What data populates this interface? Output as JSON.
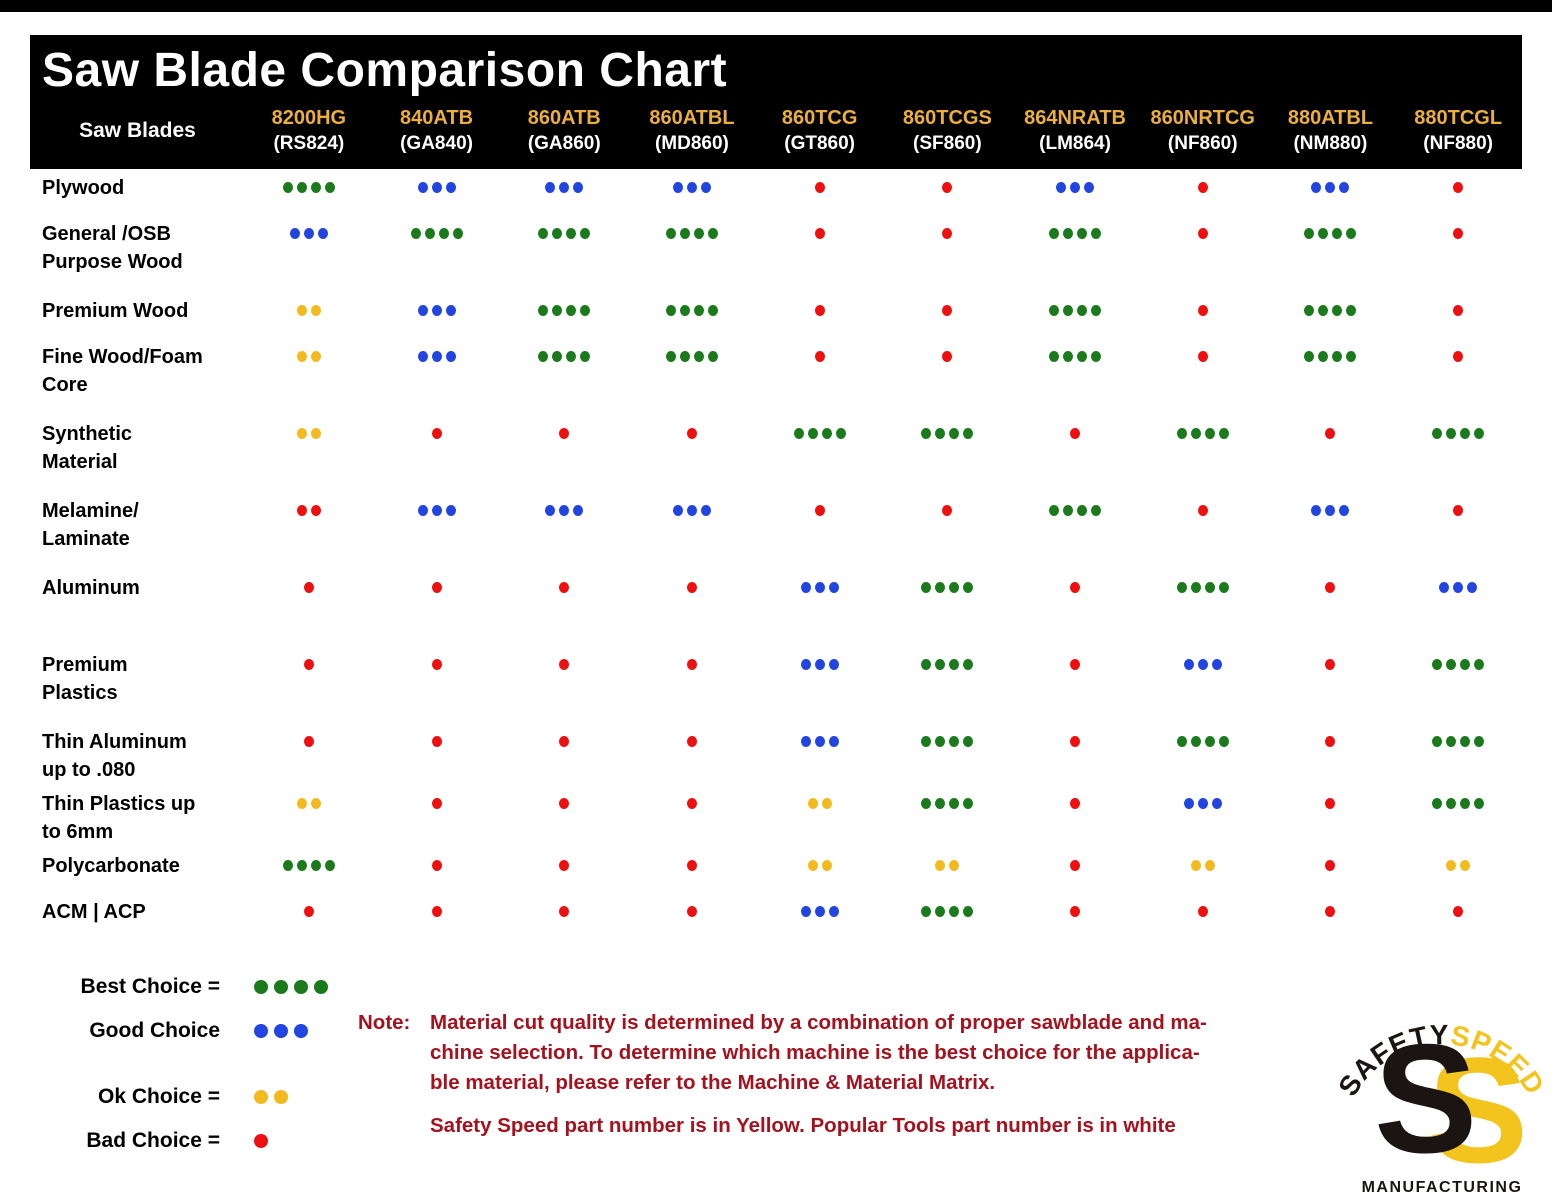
{
  "title": "Saw Blade Comparison Chart",
  "colors": {
    "header_bg": "#000000",
    "title_text": "#ffffff",
    "part_number_yellow": "#ecaf3c",
    "popular_number_white": "#ffffff",
    "best_green": "#1b7a1b",
    "good_blue": "#2244e0",
    "ok_yellow": "#f3ba20",
    "bad_red": "#ee1010",
    "note_red": "#a5121e",
    "logo_yellow": "#f2c41d",
    "logo_black": "#1a1512"
  },
  "table": {
    "corner_label": "Saw Blades",
    "columns": [
      {
        "part": "8200HG",
        "popular": "(RS824)"
      },
      {
        "part": "840ATB",
        "popular": "(GA840)"
      },
      {
        "part": "860ATB",
        "popular": "(GA860)"
      },
      {
        "part": "860ATBL",
        "popular": "(MD860)"
      },
      {
        "part": "860TCG",
        "popular": "(GT860)"
      },
      {
        "part": "860TCGS",
        "popular": "(SF860)"
      },
      {
        "part": "864NRATB",
        "popular": "(LM864)"
      },
      {
        "part": "860NRTCG",
        "popular": "(NF860)"
      },
      {
        "part": "880ATBL",
        "popular": "(NM880)"
      },
      {
        "part": "880TCGL",
        "popular": "(NF880)"
      }
    ],
    "rows": [
      {
        "label_lines": [
          "Plywood"
        ],
        "ratings": [
          "g4",
          "b3",
          "b3",
          "b3",
          "r1",
          "r1",
          "b3",
          "r1",
          "b3",
          "r1"
        ]
      },
      {
        "label_lines": [
          "General /OSB",
          "Purpose Wood"
        ],
        "ratings": [
          "b3",
          "g4",
          "g4",
          "g4",
          "r1",
          "r1",
          "g4",
          "r1",
          "g4",
          "r1"
        ]
      },
      {
        "label_lines": [
          "Premium Wood"
        ],
        "ratings": [
          "y2",
          "b3",
          "g4",
          "g4",
          "r1",
          "r1",
          "g4",
          "r1",
          "g4",
          "r1"
        ]
      },
      {
        "label_lines": [
          "Fine Wood/Foam",
          "Core"
        ],
        "ratings": [
          "y2",
          "b3",
          "g4",
          "g4",
          "r1",
          "r1",
          "g4",
          "r1",
          "g4",
          "r1"
        ]
      },
      {
        "label_lines": [
          "Synthetic",
          "Material"
        ],
        "ratings": [
          "y2",
          "r1",
          "r1",
          "r1",
          "g4",
          "g4",
          "r1",
          "g4",
          "r1",
          "g4"
        ]
      },
      {
        "label_lines": [
          "Melamine/",
          "Laminate"
        ],
        "ratings": [
          "r2",
          "b3",
          "b3",
          "b3",
          "r1",
          "r1",
          "g4",
          "r1",
          "b3",
          "r1"
        ]
      },
      {
        "label_lines": [
          "Aluminum"
        ],
        "ratings": [
          "r1",
          "r1",
          "r1",
          "r1",
          "b3",
          "g4",
          "r1",
          "g4",
          "r1",
          "b3"
        ]
      },
      {
        "label_lines": [
          "Premium",
          "Plastics"
        ],
        "ratings": [
          "r1",
          "r1",
          "r1",
          "r1",
          "b3",
          "g4",
          "r1",
          "b3",
          "r1",
          "g4"
        ]
      },
      {
        "label_lines": [
          "Thin Aluminum",
          "up to .080"
        ],
        "ratings": [
          "r1",
          "r1",
          "r1",
          "r1",
          "b3",
          "g4",
          "r1",
          "g4",
          "r1",
          "g4"
        ]
      },
      {
        "label_lines": [
          "Thin Plastics up",
          "to 6mm"
        ],
        "ratings": [
          "y2",
          "r1",
          "r1",
          "r1",
          "y2",
          "g4",
          "r1",
          "b3",
          "r1",
          "g4"
        ]
      },
      {
        "label_lines": [
          "Polycarbonate"
        ],
        "ratings": [
          "g4",
          "r1",
          "r1",
          "r1",
          "y2",
          "y2",
          "r1",
          "y2",
          "r1",
          "y2"
        ]
      },
      {
        "label_lines": [
          "ACM | ACP"
        ],
        "ratings": [
          "r1",
          "r1",
          "r1",
          "r1",
          "b3",
          "g4",
          "r1",
          "r1",
          "r1",
          "r1"
        ]
      }
    ]
  },
  "ratings_key": {
    "g4": {
      "color_name": "green",
      "dots": 4
    },
    "b3": {
      "color_name": "blue",
      "dots": 3
    },
    "y2": {
      "color_name": "yellow",
      "dots": 2
    },
    "r1": {
      "color_name": "red",
      "dots": 1
    },
    "r2": {
      "color_name": "red",
      "dots": 2
    }
  },
  "legend": {
    "items": [
      {
        "label": "Best Choice =",
        "rating": "g4"
      },
      {
        "label": "Good Choice",
        "rating": "b3"
      },
      {
        "label": "Ok Choice =",
        "rating": "y2"
      },
      {
        "label": "Bad Choice =",
        "rating": "r1"
      }
    ]
  },
  "note": {
    "label": "Note:",
    "lines": [
      "Material cut quality is determined by a combination of proper sawblade and ma-",
      "chine selection. To determine which machine is the best choice for the applica-",
      "ble material, please refer to the Machine & Material Matrix."
    ],
    "footer": "Safety Speed part number is in Yellow. Popular Tools part number is in white"
  },
  "logo": {
    "arc_left": "SAFETY",
    "arc_right": "SPEED",
    "s_letter": "S",
    "bottom": "MANUFACTURING"
  },
  "chart_data": {
    "type": "table",
    "title": "Saw Blade Comparison Chart",
    "columns": [
      "8200HG (RS824)",
      "840ATB (GA840)",
      "860ATB (GA860)",
      "860ATBL (MD860)",
      "860TCG (GT860)",
      "860TCGS (SF860)",
      "864NRATB (LM864)",
      "860NRTCG (NF860)",
      "880ATBL (NM880)",
      "880TCGL (NF880)"
    ],
    "rating_legend": {
      "g4": "Best Choice (4 green dots)",
      "b3": "Good Choice (3 blue dots)",
      "y2": "Ok Choice (2 yellow dots)",
      "r1": "Bad Choice (1 red dot)",
      "r2": "2 red dots"
    },
    "rows": [
      {
        "material": "Plywood",
        "ratings": [
          "g4",
          "b3",
          "b3",
          "b3",
          "r1",
          "r1",
          "b3",
          "r1",
          "b3",
          "r1"
        ]
      },
      {
        "material": "General /OSB Purpose Wood",
        "ratings": [
          "b3",
          "g4",
          "g4",
          "g4",
          "r1",
          "r1",
          "g4",
          "r1",
          "g4",
          "r1"
        ]
      },
      {
        "material": "Premium Wood",
        "ratings": [
          "y2",
          "b3",
          "g4",
          "g4",
          "r1",
          "r1",
          "g4",
          "r1",
          "g4",
          "r1"
        ]
      },
      {
        "material": "Fine Wood/Foam Core",
        "ratings": [
          "y2",
          "b3",
          "g4",
          "g4",
          "r1",
          "r1",
          "g4",
          "r1",
          "g4",
          "r1"
        ]
      },
      {
        "material": "Synthetic Material",
        "ratings": [
          "y2",
          "r1",
          "r1",
          "r1",
          "g4",
          "g4",
          "r1",
          "g4",
          "r1",
          "g4"
        ]
      },
      {
        "material": "Melamine/Laminate",
        "ratings": [
          "r2",
          "b3",
          "b3",
          "b3",
          "r1",
          "r1",
          "g4",
          "r1",
          "b3",
          "r1"
        ]
      },
      {
        "material": "Aluminum",
        "ratings": [
          "r1",
          "r1",
          "r1",
          "r1",
          "b3",
          "g4",
          "r1",
          "g4",
          "r1",
          "b3"
        ]
      },
      {
        "material": "Premium Plastics",
        "ratings": [
          "r1",
          "r1",
          "r1",
          "r1",
          "b3",
          "g4",
          "r1",
          "b3",
          "r1",
          "g4"
        ]
      },
      {
        "material": "Thin Aluminum up to .080",
        "ratings": [
          "r1",
          "r1",
          "r1",
          "r1",
          "b3",
          "g4",
          "r1",
          "g4",
          "r1",
          "g4"
        ]
      },
      {
        "material": "Thin Plastics up to 6mm",
        "ratings": [
          "y2",
          "r1",
          "r1",
          "r1",
          "y2",
          "g4",
          "r1",
          "b3",
          "r1",
          "g4"
        ]
      },
      {
        "material": "Polycarbonate",
        "ratings": [
          "g4",
          "r1",
          "r1",
          "r1",
          "y2",
          "y2",
          "r1",
          "y2",
          "r1",
          "y2"
        ]
      },
      {
        "material": "ACM | ACP",
        "ratings": [
          "r1",
          "r1",
          "r1",
          "r1",
          "b3",
          "g4",
          "r1",
          "r1",
          "r1",
          "r1"
        ]
      }
    ]
  }
}
